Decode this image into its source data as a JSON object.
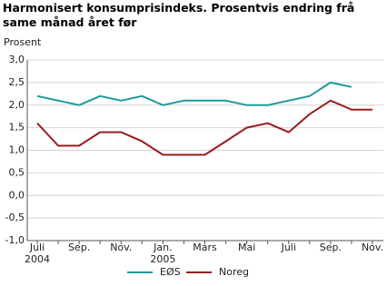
{
  "chart_data": {
    "type": "line",
    "title": "Harmonisert konsumprisindeks. Prosentvis endring frå same månad året før",
    "y_label": "Prosent",
    "categories": [
      "Juli 2004",
      null,
      "Sep.",
      null,
      "Nov.",
      null,
      "Jan. 2005",
      null,
      "Mars",
      null,
      "Mai",
      null,
      "Juli",
      null,
      "Sep.",
      null,
      "Nov."
    ],
    "series": [
      {
        "name": "EØS",
        "color": "#1b9a9c",
        "values": [
          2.2,
          2.1,
          2.0,
          2.2,
          2.1,
          2.2,
          2.0,
          2.1,
          2.1,
          2.1,
          2.0,
          2.0,
          2.1,
          2.2,
          2.5,
          2.4,
          null
        ]
      },
      {
        "name": "Noreg",
        "color": "#9b1b1e",
        "values": [
          1.6,
          1.1,
          1.1,
          1.4,
          1.4,
          1.2,
          0.9,
          0.9,
          0.9,
          1.2,
          1.5,
          1.6,
          1.4,
          1.8,
          2.1,
          1.9,
          1.9
        ]
      }
    ],
    "ylim": [
      -1.0,
      3.0
    ],
    "yticks": [
      {
        "value": -1.0,
        "label": "-1,0"
      },
      {
        "value": -0.5,
        "label": "-0,5"
      },
      {
        "value": 0,
        "label": "0,0"
      },
      {
        "value": 0.5,
        "label": "0,5"
      },
      {
        "value": 1.0,
        "label": "1,0"
      },
      {
        "value": 1.5,
        "label": "1,5"
      },
      {
        "value": 2.0,
        "label": "2,0"
      },
      {
        "value": 2.5,
        "label": "2,5"
      },
      {
        "value": 3.0,
        "label": "3,0"
      }
    ],
    "grid": true,
    "legend": "bottom"
  }
}
